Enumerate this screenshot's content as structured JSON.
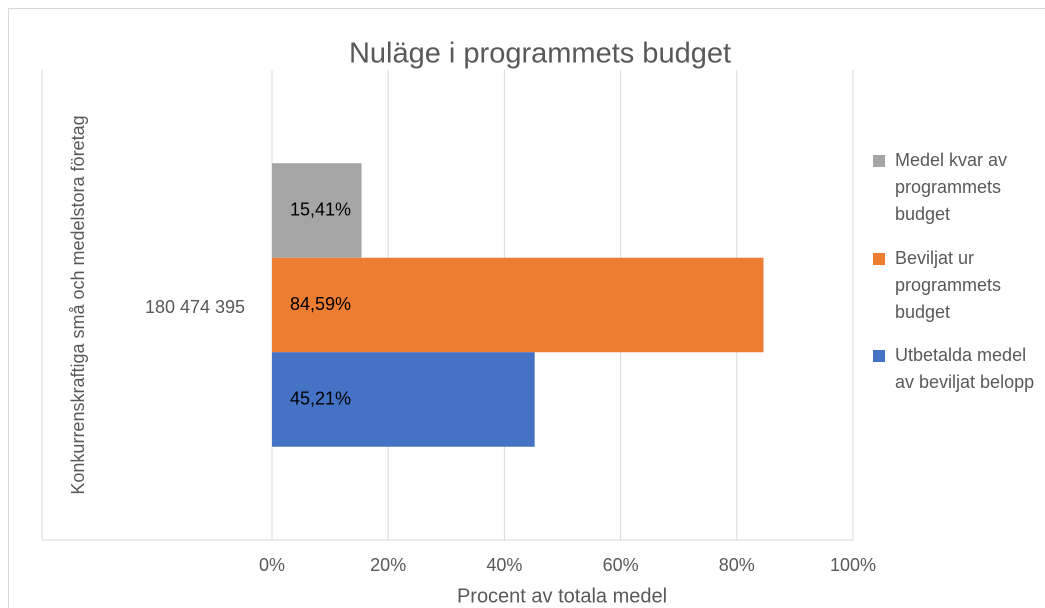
{
  "chart_data": {
    "type": "bar",
    "orientation": "horizontal",
    "title": "Nuläge i programmets budget",
    "x_label": "Procent av totala medel",
    "category_group": "Konkurrenskraftiga små och medelstora företag",
    "categories": [
      "180 474 395"
    ],
    "series": [
      {
        "name": "Medel kvar av programmets budget",
        "color": "#a5a5a5",
        "values": [
          15.41
        ],
        "value_labels": [
          "15,41%"
        ]
      },
      {
        "name": "Beviljat ur programmets budget",
        "color": "#ed7d31",
        "values": [
          84.59
        ],
        "value_labels": [
          "84,59%"
        ]
      },
      {
        "name": "Utbetalda medel av beviljat belopp",
        "color": "#4472c4",
        "values": [
          45.21
        ],
        "value_labels": [
          "45,21%"
        ]
      }
    ],
    "xlim": [
      0,
      100
    ],
    "xticks": [
      {
        "value": 0,
        "label": "0%"
      },
      {
        "value": 20,
        "label": "20%"
      },
      {
        "value": 40,
        "label": "40%"
      },
      {
        "value": 60,
        "label": "60%"
      },
      {
        "value": 80,
        "label": "80%"
      },
      {
        "value": 100,
        "label": "100%"
      }
    ],
    "grid": true,
    "legend": "right"
  }
}
